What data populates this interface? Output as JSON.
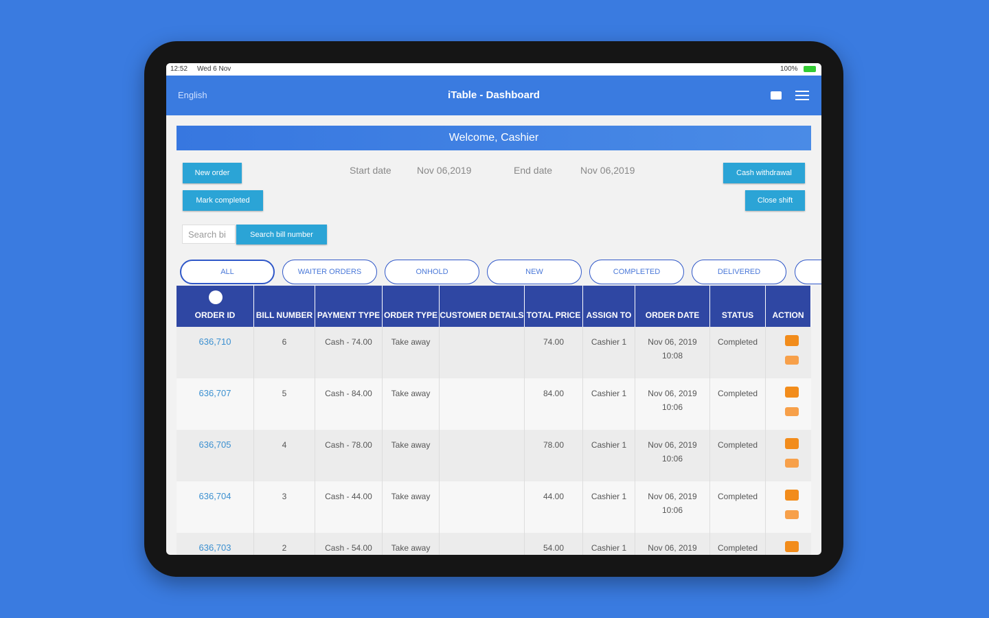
{
  "status_bar": {
    "time": "12:52",
    "date": "Wed 6 Nov",
    "battery": "100%"
  },
  "header": {
    "language": "English",
    "title": "iTable - Dashboard"
  },
  "welcome": "Welcome, Cashier",
  "buttons": {
    "new_order": "New order",
    "mark_completed": "Mark completed",
    "cash_withdrawal": "Cash withdrawal",
    "close_shift": "Close shift",
    "search_bill": "Search bill number"
  },
  "search_placeholder": "Search bi",
  "dates": {
    "start_label": "Start date",
    "start_value": "Nov 06,2019",
    "end_label": "End date",
    "end_value": "Nov 06,2019"
  },
  "tabs": [
    "ALL",
    "WAITER ORDERS",
    "ONHOLD",
    "NEW",
    "COMPLETED",
    "DELIVERED"
  ],
  "table": {
    "columns": [
      "ORDER ID",
      "BILL NUMBER",
      "PAYMENT TYPE",
      "ORDER TYPE",
      "CUSTOMER DETAILS",
      "TOTAL PRICE",
      "ASSIGN TO",
      "ORDER DATE",
      "STATUS",
      "ACTION"
    ],
    "rows": [
      {
        "order_id": "636,710",
        "bill_number": "6",
        "payment": "Cash - 74.00",
        "order_type": "Take away",
        "total": "74.00",
        "assign": "Cashier 1",
        "date": "Nov 06, 2019",
        "time": "10:08",
        "status": "Completed"
      },
      {
        "order_id": "636,707",
        "bill_number": "5",
        "payment": "Cash - 84.00",
        "order_type": "Take away",
        "total": "84.00",
        "assign": "Cashier 1",
        "date": "Nov 06, 2019",
        "time": "10:06",
        "status": "Completed"
      },
      {
        "order_id": "636,705",
        "bill_number": "4",
        "payment": "Cash - 78.00",
        "order_type": "Take away",
        "total": "78.00",
        "assign": "Cashier 1",
        "date": "Nov 06, 2019",
        "time": "10:06",
        "status": "Completed"
      },
      {
        "order_id": "636,704",
        "bill_number": "3",
        "payment": "Cash - 44.00",
        "order_type": "Take away",
        "total": "44.00",
        "assign": "Cashier 1",
        "date": "Nov 06, 2019",
        "time": "10:06",
        "status": "Completed"
      },
      {
        "order_id": "636,703",
        "bill_number": "2",
        "payment": "Cash - 54.00",
        "order_type": "Take away",
        "total": "54.00",
        "assign": "Cashier 1",
        "date": "Nov 06, 2019",
        "status": "Completed"
      }
    ]
  }
}
